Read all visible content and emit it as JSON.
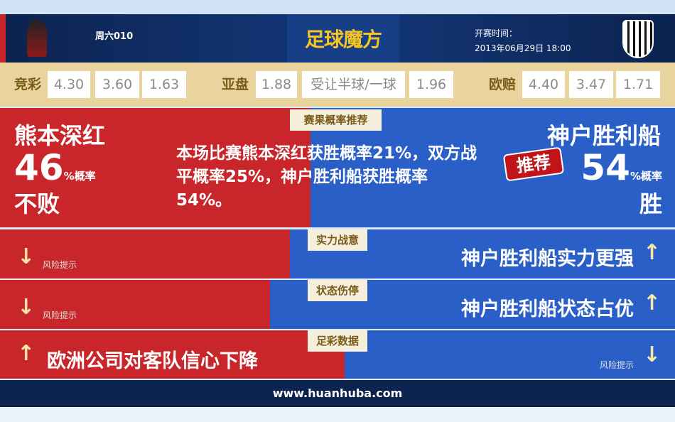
{
  "header": {
    "match_no": "周六010",
    "logo_text": "足球魔方",
    "kickoff_label": "开赛时间：",
    "kickoff_time": "2013年06月29日 18:00"
  },
  "odds": {
    "jc_label": "竞彩",
    "jc": [
      "4.30",
      "3.60",
      "1.63"
    ],
    "yp_label": "亚盘",
    "yp": [
      "1.88",
      "受让半球/一球",
      "1.96"
    ],
    "op_label": "欧赔",
    "op": [
      "4.40",
      "3.47",
      "1.71"
    ]
  },
  "prob": {
    "tag": "赛果概率推荐",
    "home_team": "熊本深红",
    "home_pct": "46",
    "pct_suffix": "%概率",
    "home_result": "不败",
    "summary": "本场比赛熊本深红获胜概率21%，双方战平概率25%，神户胜利船获胜概率54%。",
    "away_team": "神户胜利船",
    "away_pct": "54",
    "away_result": "胜",
    "recommend": "推荐"
  },
  "rows": [
    {
      "tag": "实力战意",
      "home": "风险提示",
      "away": "神户胜利船实力更强"
    },
    {
      "tag": "状态伤停",
      "home": "风险提示",
      "away": "神户胜利船状态占优"
    },
    {
      "tag": "足彩数据",
      "home": "欧洲公司对客队信心下降",
      "away": "风险提示"
    }
  ],
  "footer": {
    "url": "www.huanhuba.com"
  },
  "colors": {
    "home": "#c8262a",
    "away": "#2a5fc8",
    "header": "#0c2350",
    "odds_bg": "#ead49d"
  }
}
